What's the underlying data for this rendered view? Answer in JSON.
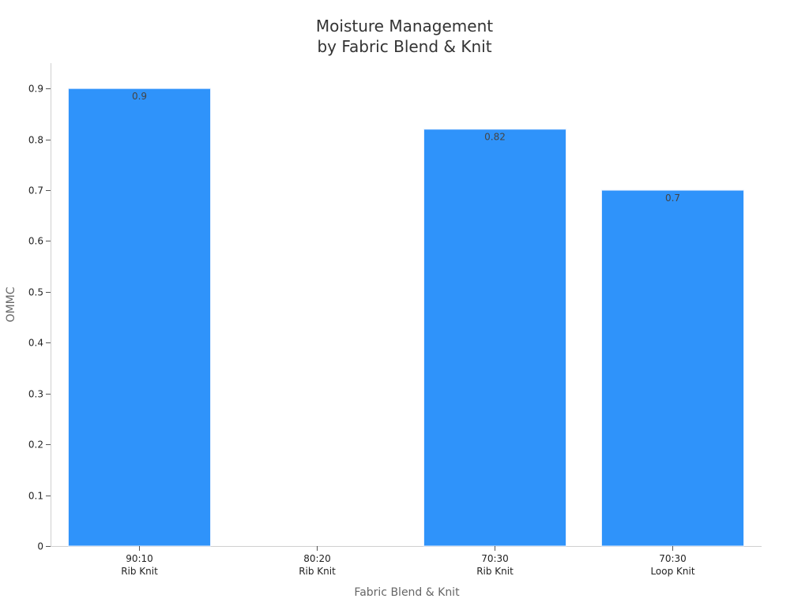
{
  "chart_data": {
    "type": "bar",
    "title_lines": [
      "Moisture Management",
      "by Fabric Blend & Knit"
    ],
    "xlabel": "Fabric Blend & Knit",
    "ylabel": "OMMC",
    "categories": [
      [
        "90:10",
        "Rib Knit"
      ],
      [
        "80:20",
        "Rib Knit"
      ],
      [
        "70:30",
        "Rib Knit"
      ],
      [
        "70:30",
        "Loop Knit"
      ]
    ],
    "values": [
      0.9,
      null,
      0.82,
      0.7
    ],
    "data_labels": [
      "0.9",
      "",
      "0.82",
      "0.7"
    ],
    "yticks": [
      0,
      0.1,
      0.2,
      0.3,
      0.4,
      0.5,
      0.6,
      0.7,
      0.8,
      0.9
    ],
    "ytick_labels": [
      "0",
      "0.1",
      "0.2",
      "0.3",
      "0.4",
      "0.5",
      "0.6",
      "0.7",
      "0.8",
      "0.9"
    ],
    "ylim": [
      0,
      0.95
    ],
    "bar_color": "#2f93fa",
    "grid": false,
    "legend": "none"
  }
}
